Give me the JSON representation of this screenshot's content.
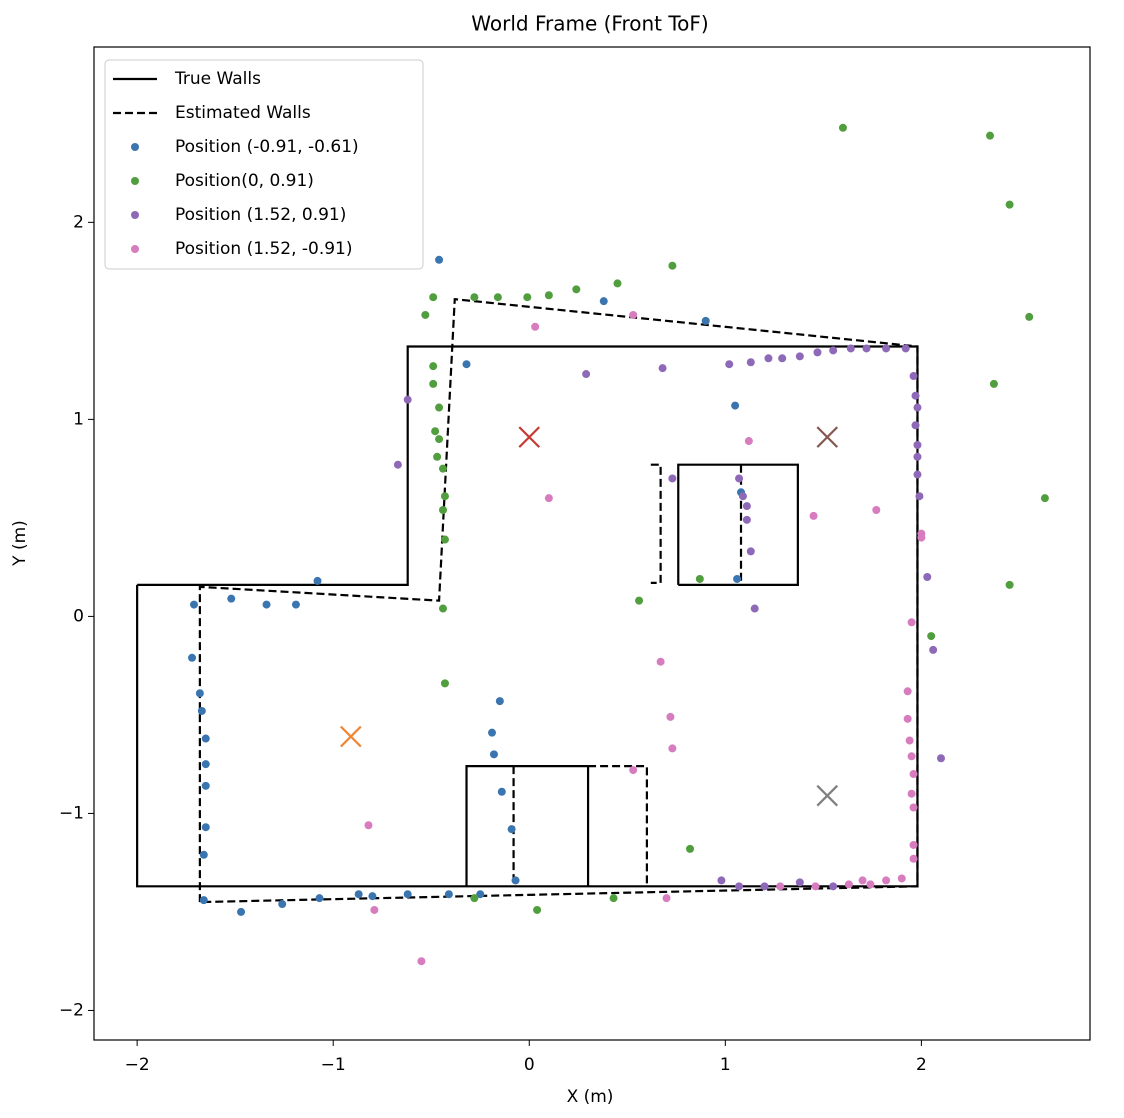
{
  "chart_data": {
    "type": "scatter",
    "title": "World Frame (Front ToF)",
    "x_label": "X (m)",
    "y_label": "Y (m)",
    "xlim": [
      -2.22,
      2.86
    ],
    "ylim": [
      -2.15,
      2.89
    ],
    "xticks": [
      {
        "value": -2,
        "label": "−2"
      },
      {
        "value": -1,
        "label": "−1"
      },
      0,
      1,
      2
    ],
    "yticks": [
      {
        "value": -2,
        "label": "−2"
      },
      {
        "value": -1,
        "label": "−1"
      },
      0,
      1,
      2
    ],
    "grid": false,
    "legend": "upper left",
    "lines": [
      {
        "name": "True Walls",
        "color": "#000000",
        "style": "solid",
        "x": [
          -2,
          -0.62,
          -0.62,
          1.98,
          1.98,
          -2,
          -2,
          null,
          0.76,
          1.37,
          1.37,
          0.76,
          0.76,
          null,
          -0.32,
          0.3,
          0.3,
          -0.32,
          -0.32
        ],
        "y": [
          0.16,
          0.16,
          1.37,
          1.37,
          -1.37,
          -1.37,
          0.16,
          null,
          0.16,
          0.16,
          0.77,
          0.77,
          0.16,
          null,
          -1.37,
          -1.37,
          -0.76,
          -0.76,
          -1.37
        ]
      },
      {
        "name": "Estimated Walls",
        "color": "#000000",
        "style": "dashed",
        "x": [
          -1.68,
          -1.68,
          -0.46,
          -0.38,
          1.98,
          1.98,
          -1.68,
          null,
          0.62,
          0.67,
          0.67,
          0.62,
          null,
          1.08,
          1.08,
          null,
          -0.08,
          -0.08,
          null,
          0.3,
          0.6,
          0.6
        ],
        "y": [
          -1.45,
          0.15,
          0.08,
          1.61,
          1.37,
          -1.37,
          -1.45,
          null,
          0.77,
          0.77,
          0.17,
          0.17,
          null,
          0.77,
          0.17,
          null,
          -0.76,
          -1.37,
          null,
          -0.76,
          -0.76,
          -1.37
        ]
      }
    ],
    "series": [
      {
        "name": "Position (-0.91, -0.61)",
        "color": "#3b75af",
        "x": [
          -0.46,
          0.38,
          0.9,
          -0.32,
          1.05,
          -1.08,
          -1.71,
          -1.52,
          -1.34,
          -1.19,
          -1.72,
          -1.68,
          -1.67,
          -1.65,
          -1.65,
          -1.65,
          -1.65,
          -1.66,
          -1.66,
          -1.47,
          -1.26,
          -1.07,
          -0.87,
          -0.8,
          -0.62,
          -0.41,
          -0.25,
          -0.07,
          -0.09,
          -0.14,
          -0.18,
          -0.19,
          -0.15,
          1.06,
          1.08
        ],
        "y": [
          1.81,
          1.6,
          1.5,
          1.28,
          1.07,
          0.18,
          0.06,
          0.09,
          0.06,
          0.06,
          -0.21,
          -0.39,
          -0.48,
          -0.62,
          -0.75,
          -0.86,
          -1.07,
          -1.21,
          -1.44,
          -1.5,
          -1.46,
          -1.43,
          -1.41,
          -1.42,
          -1.41,
          -1.41,
          -1.41,
          -1.34,
          -1.08,
          -0.89,
          -0.7,
          -0.59,
          -0.43,
          0.19,
          0.63
        ]
      },
      {
        "name": "Position(0, 0.91)",
        "color": "#519e3e",
        "x": [
          1.6,
          2.35,
          2.45,
          0.73,
          0.45,
          0.24,
          0.1,
          -0.01,
          -0.16,
          -0.28,
          -0.49,
          -0.53,
          2.55,
          -0.49,
          -0.49,
          2.37,
          -0.46,
          -0.48,
          -0.46,
          -0.47,
          -0.44,
          -0.43,
          -0.44,
          -0.43,
          -0.44,
          0.56,
          0.87,
          2.63,
          2.45,
          2.05,
          -0.43,
          0.82,
          -0.28,
          0.04,
          0.43
        ],
        "y": [
          2.48,
          2.44,
          2.09,
          1.78,
          1.69,
          1.66,
          1.63,
          1.62,
          1.62,
          1.62,
          1.62,
          1.53,
          1.52,
          1.27,
          1.18,
          1.18,
          1.06,
          0.94,
          0.9,
          0.81,
          0.75,
          0.61,
          0.54,
          0.39,
          0.04,
          0.08,
          0.19,
          0.6,
          0.16,
          -0.1,
          -0.34,
          -1.18,
          -1.43,
          -1.49,
          -1.43
        ]
      },
      {
        "name": "Position (1.52, 0.91)",
        "color": "#8d69b8",
        "x": [
          0.29,
          0.68,
          1.02,
          1.13,
          1.22,
          1.29,
          1.38,
          1.47,
          1.55,
          1.64,
          1.72,
          1.82,
          1.92,
          1.96,
          1.97,
          1.98,
          1.97,
          1.98,
          1.98,
          1.98,
          1.99,
          -0.62,
          -0.67,
          0.73,
          1.07,
          1.09,
          1.11,
          1.11,
          1.13,
          1.15,
          2.03,
          2.06,
          2.1,
          0.98,
          1.07,
          1.2,
          1.38,
          1.55
        ],
        "y": [
          1.23,
          1.26,
          1.28,
          1.29,
          1.31,
          1.31,
          1.32,
          1.34,
          1.35,
          1.36,
          1.36,
          1.36,
          1.36,
          1.22,
          1.12,
          1.06,
          0.97,
          0.87,
          0.81,
          0.72,
          0.61,
          1.1,
          0.77,
          0.7,
          0.7,
          0.61,
          0.56,
          0.49,
          0.33,
          0.04,
          0.2,
          -0.17,
          -0.72,
          -1.34,
          -1.37,
          -1.37,
          -1.35,
          -1.37
        ]
      },
      {
        "name": "Position (1.52, -0.91)",
        "color": "#d67cbf",
        "x": [
          0.03,
          0.53,
          1.12,
          0.1,
          1.45,
          1.77,
          2.0,
          2.0,
          1.95,
          0.67,
          0.72,
          0.73,
          0.53,
          1.93,
          1.93,
          1.94,
          1.95,
          1.96,
          1.95,
          1.96,
          1.96,
          1.96,
          1.9,
          1.82,
          1.74,
          1.7,
          1.63,
          1.46,
          1.28,
          0.7,
          -0.82,
          -0.79,
          -0.55
        ],
        "y": [
          1.47,
          1.53,
          0.89,
          0.6,
          0.51,
          0.54,
          0.42,
          0.4,
          -0.03,
          -0.23,
          -0.51,
          -0.67,
          -0.78,
          -0.38,
          -0.52,
          -0.63,
          -0.71,
          -0.8,
          -0.9,
          -0.97,
          -1.16,
          -1.23,
          -1.33,
          -1.34,
          -1.36,
          -1.34,
          -1.36,
          -1.37,
          -1.37,
          -1.43,
          -1.06,
          -1.49,
          -1.75
        ]
      }
    ],
    "markers": [
      {
        "x": 0,
        "y": 0.91,
        "color": "#c53a32"
      },
      {
        "x": -0.91,
        "y": -0.61,
        "color": "#ef8636"
      },
      {
        "x": 1.52,
        "y": 0.91,
        "color": "#84584e"
      },
      {
        "x": 1.52,
        "y": -0.91,
        "color": "#7f7f7f"
      }
    ]
  }
}
